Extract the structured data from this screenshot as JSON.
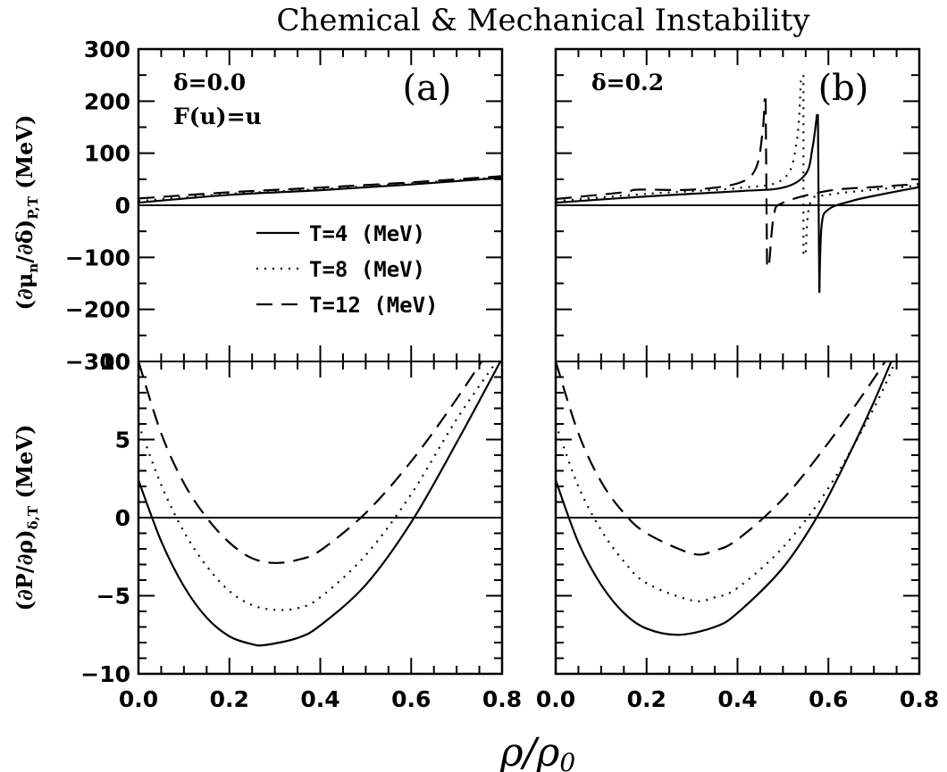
{
  "title": "Chemical & Mechanical Instability",
  "xlabel": "ρ/ρ",
  "xlabel_sub": "0",
  "ylabel_top": "(∂μ",
  "ylabel_top_sub1": "n",
  "ylabel_top_mid": "/∂δ)",
  "ylabel_top_sub2": "P,T",
  "ylabel_top_unit": " (MeV)",
  "ylabel_bottom": "(∂P/∂ρ)",
  "ylabel_bottom_sub": "δ,T",
  "ylabel_bottom_unit": " (MeV)",
  "panels": [
    {
      "id": "(a)",
      "annotations": [
        "δ=0.0",
        "F(u)=u"
      ]
    },
    {
      "id": "(b)",
      "annotations": [
        "δ=0.2"
      ]
    }
  ],
  "legend": [
    {
      "label": "T=4  (MeV)",
      "style": "solid"
    },
    {
      "label": "T=8  (MeV)",
      "style": "dotted"
    },
    {
      "label": "T=12 (MeV)",
      "style": "dashed"
    }
  ],
  "x_ticklabels": [
    "0.0",
    "0.2",
    "0.4",
    "0.6",
    "0.8"
  ],
  "y_ticklabels_top": [
    "300",
    "200",
    "100",
    "0",
    "−100",
    "−200",
    "−300"
  ],
  "y_ticklabels_bottom": [
    "10",
    "5",
    "0",
    "−5",
    "−10"
  ],
  "chart_data": [
    {
      "type": "line",
      "panel": "top-left",
      "xlim": [
        0.0,
        0.8
      ],
      "ylim": [
        -300,
        300
      ],
      "series": [
        {
          "name": "T=4  (MeV)",
          "style": "solid",
          "x": [
            0.0,
            0.2,
            0.4,
            0.6,
            0.8
          ],
          "y": [
            5,
            20,
            29,
            40,
            53
          ]
        },
        {
          "name": "T=8  (MeV)",
          "style": "dotted",
          "x": [
            0.0,
            0.2,
            0.4,
            0.6,
            0.8
          ],
          "y": [
            8,
            22,
            31,
            42,
            54
          ]
        },
        {
          "name": "T=12 (MeV)",
          "style": "dashed",
          "x": [
            0.0,
            0.2,
            0.4,
            0.6,
            0.8
          ],
          "y": [
            13,
            25,
            34,
            44,
            56
          ]
        }
      ]
    },
    {
      "type": "line",
      "panel": "top-right",
      "xlim": [
        0.0,
        0.8
      ],
      "ylim": [
        -300,
        300
      ],
      "series": [
        {
          "name": "T=4  (MeV)",
          "style": "solid",
          "segments": [
            {
              "x": [
                0.0,
                0.2,
                0.4,
                0.5,
                0.55,
                0.565,
                0.575
              ],
              "y": [
                5,
                17,
                27,
                34,
                60,
                110,
                175
              ]
            },
            {
              "x": [
                0.577,
                0.58
              ],
              "y": [
                175,
                -168
              ]
            },
            {
              "x": [
                0.58,
                0.585,
                0.6,
                0.65,
                0.7,
                0.8
              ],
              "y": [
                -168,
                -40,
                -8,
                8,
                18,
                35
              ]
            }
          ]
        },
        {
          "name": "T=8  (MeV)",
          "style": "dotted",
          "segments": [
            {
              "x": [
                0.0,
                0.2,
                0.4,
                0.5,
                0.53,
                0.54
              ],
              "y": [
                8,
                22,
                33,
                50,
                120,
                250
              ]
            },
            {
              "x": [
                0.545,
                0.545
              ],
              "y": [
                250,
                -100
              ]
            },
            {
              "x": [
                0.55,
                0.56,
                0.6,
                0.7,
                0.8
              ],
              "y": [
                -90,
                5,
                20,
                30,
                38
              ]
            }
          ]
        },
        {
          "name": "T=12 (MeV)",
          "style": "dashed",
          "segments": [
            {
              "x": [
                0.0,
                0.15,
                0.18,
                0.3,
                0.4,
                0.44,
                0.455,
                0.46
              ],
              "y": [
                12,
                25,
                30,
                30,
                42,
                70,
                140,
                205
              ]
            },
            {
              "x": [
                0.462,
                0.465
              ],
              "y": [
                205,
                -122
              ]
            },
            {
              "x": [
                0.47,
                0.48,
                0.5,
                0.6,
                0.7,
                0.8
              ],
              "y": [
                -110,
                -20,
                5,
                28,
                35,
                41
              ]
            }
          ]
        }
      ]
    },
    {
      "type": "line",
      "panel": "bottom-left",
      "xlim": [
        0.0,
        0.8
      ],
      "ylim": [
        -10,
        10
      ],
      "series": [
        {
          "name": "T=4  (MeV)",
          "style": "solid",
          "x": [
            0.0,
            0.05,
            0.1,
            0.15,
            0.2,
            0.25,
            0.28,
            0.35,
            0.4,
            0.5,
            0.6,
            0.7,
            0.8
          ],
          "y": [
            2.4,
            -1.5,
            -4.4,
            -6.4,
            -7.6,
            -8.1,
            -8.15,
            -7.7,
            -6.9,
            -4.3,
            -0.3,
            4.8,
            10.2
          ]
        },
        {
          "name": "T=8  (MeV)",
          "style": "dotted",
          "x": [
            0.0,
            0.05,
            0.1,
            0.15,
            0.2,
            0.25,
            0.3,
            0.35,
            0.4,
            0.5,
            0.6,
            0.7,
            0.8
          ],
          "y": [
            6.0,
            2.1,
            -0.9,
            -3.1,
            -4.7,
            -5.6,
            -5.9,
            -5.8,
            -5.1,
            -2.4,
            1.5,
            6.3,
            10.5
          ]
        },
        {
          "name": "T=12 (MeV)",
          "style": "dashed",
          "x": [
            0.0,
            0.05,
            0.1,
            0.15,
            0.2,
            0.25,
            0.3,
            0.35,
            0.4,
            0.5,
            0.6,
            0.7,
            0.8
          ],
          "y": [
            10.0,
            5.4,
            2.2,
            0.0,
            -1.6,
            -2.6,
            -2.9,
            -2.7,
            -2.1,
            0.3,
            3.6,
            7.6,
            12.0
          ]
        }
      ]
    },
    {
      "type": "line",
      "panel": "bottom-right",
      "xlim": [
        0.0,
        0.8
      ],
      "ylim": [
        -10,
        10
      ],
      "series": [
        {
          "name": "T=4  (MeV)",
          "style": "solid",
          "x": [
            0.0,
            0.05,
            0.1,
            0.15,
            0.2,
            0.27,
            0.35,
            0.4,
            0.5,
            0.58,
            0.65,
            0.7,
            0.75
          ],
          "y": [
            2.4,
            -1.6,
            -4.3,
            -6.1,
            -7.1,
            -7.5,
            -7.0,
            -6.1,
            -3.2,
            0.3,
            4.3,
            7.4,
            10.8
          ]
        },
        {
          "name": "T=8  (MeV)",
          "style": "dotted",
          "x": [
            0.0,
            0.05,
            0.1,
            0.15,
            0.2,
            0.3,
            0.35,
            0.4,
            0.5,
            0.6,
            0.7,
            0.75
          ],
          "y": [
            6.0,
            2.0,
            -0.8,
            -2.8,
            -4.2,
            -5.3,
            -5.1,
            -4.5,
            -1.9,
            1.9,
            7.0,
            10.2
          ]
        },
        {
          "name": "T=12 (MeV)",
          "style": "dashed",
          "x": [
            0.0,
            0.05,
            0.1,
            0.15,
            0.2,
            0.3,
            0.35,
            0.4,
            0.5,
            0.6,
            0.7,
            0.75
          ],
          "y": [
            10.0,
            5.4,
            2.3,
            0.3,
            -1.0,
            -2.3,
            -2.1,
            -1.4,
            1.2,
            4.8,
            8.9,
            11.2
          ]
        }
      ]
    }
  ]
}
